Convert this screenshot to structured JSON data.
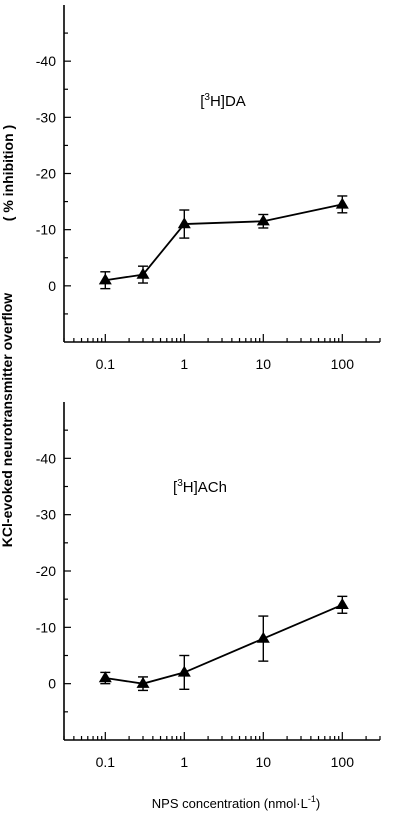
{
  "ylabel_line1": "KCl-evoked neurotransmitter overflow",
  "ylabel_line2": "( % inhibition )",
  "xlabel": "NPS concentration (nmol·L",
  "xlabel_sup": "-1",
  "xlabel_end": ")",
  "chart_data": [
    {
      "type": "line",
      "label_prefix": "[",
      "label_sup": "3",
      "label_main": "H]DA",
      "xscale": "log",
      "xlim": [
        0.03,
        300
      ],
      "ylim": [
        -50,
        10
      ],
      "y_axis_inverted": true,
      "y_ticks": [
        -40,
        -30,
        -20,
        -10,
        0
      ],
      "y_tick_labels": [
        "-40",
        "-30",
        "-20",
        "-10",
        "0"
      ],
      "x_ticks": [
        0.1,
        1,
        10,
        100
      ],
      "x_tick_labels": [
        "0.1",
        "1",
        "10",
        "100"
      ],
      "marker": "triangle",
      "color": "#000000",
      "series": [
        {
          "x": [
            0.1,
            0.3,
            1,
            10,
            100
          ],
          "y": [
            -1,
            -2,
            -11,
            -11.5,
            -14.5
          ],
          "err": [
            1.5,
            1.5,
            2.5,
            1.2,
            1.5
          ]
        }
      ]
    },
    {
      "type": "line",
      "label_prefix": "[",
      "label_sup": "3",
      "label_main": "H]ACh",
      "xscale": "log",
      "xlim": [
        0.03,
        300
      ],
      "ylim": [
        -50,
        10
      ],
      "y_axis_inverted": true,
      "y_ticks": [
        -40,
        -30,
        -20,
        -10,
        0
      ],
      "y_tick_labels": [
        "-40",
        "-30",
        "-20",
        "-10",
        "0"
      ],
      "x_ticks": [
        0.1,
        1,
        10,
        100
      ],
      "x_tick_labels": [
        "0.1",
        "1",
        "10",
        "100"
      ],
      "marker": "triangle",
      "color": "#000000",
      "series": [
        {
          "x": [
            0.1,
            0.3,
            1,
            10,
            100
          ],
          "y": [
            -1,
            0,
            -2,
            -8,
            -14
          ],
          "err": [
            1,
            1.2,
            3,
            4,
            1.5
          ]
        }
      ]
    }
  ]
}
